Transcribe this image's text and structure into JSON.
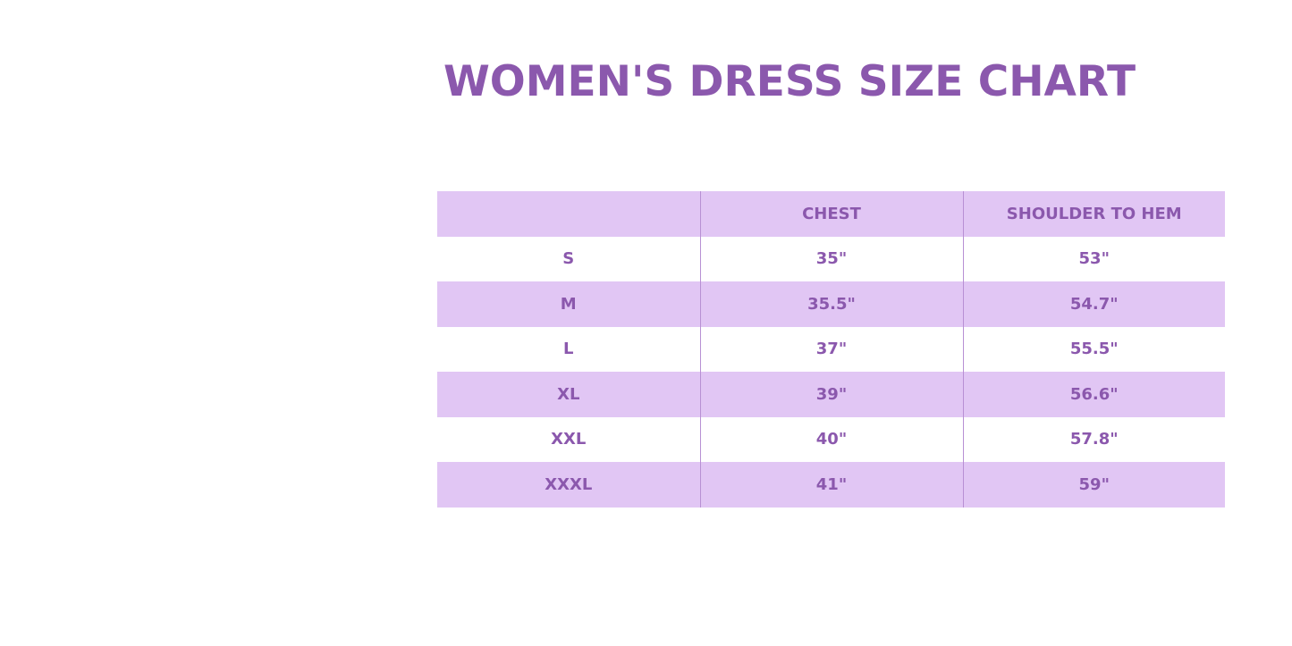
{
  "title": "WOMEN'S DRESS SIZE CHART",
  "table": {
    "headers": [
      "",
      "CHEST",
      "SHOULDER TO HEM"
    ],
    "rows": [
      [
        "S",
        "35\"",
        "53\""
      ],
      [
        "M",
        "35.5\"",
        "54.7\""
      ],
      [
        "L",
        "37\"",
        "55.5\""
      ],
      [
        "XL",
        "39\"",
        "56.6\""
      ],
      [
        "XXL",
        "40\"",
        "57.8\""
      ],
      [
        "XXXL",
        "41\"",
        "59\""
      ]
    ]
  },
  "colors": {
    "accent": "#8b58ad",
    "row_shade": "#e1c6f4"
  }
}
